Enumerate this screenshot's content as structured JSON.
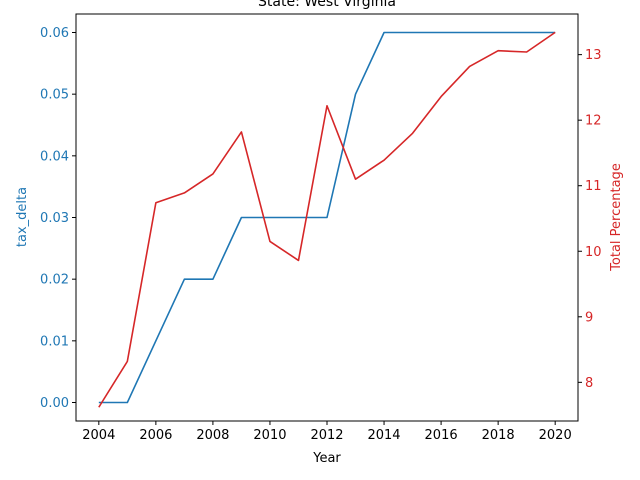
{
  "chart_data": {
    "type": "line",
    "title": "State: West Virginia",
    "xlabel": "Year",
    "ylabel_left": "tax_delta",
    "ylabel_right": "Total Percentage",
    "x": [
      2004,
      2005,
      2006,
      2007,
      2008,
      2009,
      2010,
      2011,
      2012,
      2013,
      2014,
      2015,
      2016,
      2017,
      2018,
      2019,
      2020
    ],
    "xlim": [
      2003.2,
      2020.8
    ],
    "x_ticks": [
      2004,
      2006,
      2008,
      2010,
      2012,
      2014,
      2016,
      2018,
      2020
    ],
    "ylim_left": [
      -0.003,
      0.063
    ],
    "ylim_right": [
      7.41,
      13.62
    ],
    "y_ticks_left": [
      "0.00",
      "0.01",
      "0.02",
      "0.03",
      "0.04",
      "0.05",
      "0.06"
    ],
    "y_ticks_right": [
      "8",
      "9",
      "10",
      "11",
      "12",
      "13"
    ],
    "grid": false,
    "series": [
      {
        "name": "tax_delta",
        "axis": "left",
        "color": "#1f77b4",
        "values": [
          0.0,
          0.0,
          0.01,
          0.02,
          0.02,
          0.03,
          0.03,
          0.03,
          0.03,
          0.05,
          0.06,
          0.06,
          0.06,
          0.06,
          0.06,
          0.06,
          0.06
        ]
      },
      {
        "name": "Total Percentage",
        "axis": "right",
        "color": "#d62728",
        "values": [
          7.62,
          8.32,
          10.74,
          10.89,
          11.18,
          11.82,
          10.15,
          9.86,
          12.22,
          11.1,
          11.39,
          11.8,
          12.36,
          12.82,
          13.06,
          13.04,
          13.34
        ]
      }
    ]
  }
}
